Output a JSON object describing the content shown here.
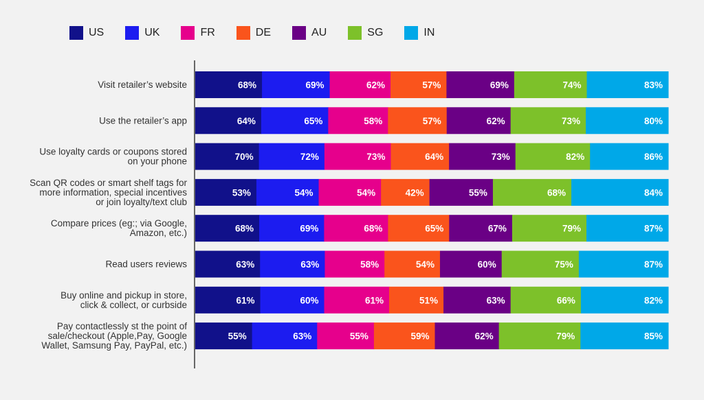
{
  "chart_data": {
    "type": "bar",
    "orientation": "horizontal",
    "stacked": true,
    "normalized": true,
    "title": "",
    "xlabel": "",
    "ylabel": "",
    "legend_position": "top-left",
    "grid": false,
    "categories": [
      "Visit retailer’s website",
      "Use the retailer’s app",
      "Use loyalty cards or coupons stored\non your phone",
      "Scan QR codes or smart shelf tags for\nmore information, special incentives\nor join loyalty/text club",
      "Compare prices (eg:; via Google,\nAmazon, etc.)",
      "Read users reviews",
      "Buy online and pickup in store,\nclick & collect, or curbside",
      "Pay contactlessly st the point of\nsale/checkout (Apple,Pay, Google\nWallet, Samsung Pay, PayPal, etc.)"
    ],
    "series": [
      {
        "name": "US",
        "color": "#11118a",
        "values": [
          68,
          64,
          70,
          53,
          68,
          63,
          61,
          55
        ]
      },
      {
        "name": "UK",
        "color": "#1c1cf0",
        "values": [
          69,
          65,
          72,
          54,
          69,
          63,
          60,
          63
        ]
      },
      {
        "name": "FR",
        "color": "#e6008c",
        "values": [
          62,
          58,
          73,
          54,
          68,
          58,
          61,
          55
        ]
      },
      {
        "name": "DE",
        "color": "#fa541c",
        "values": [
          57,
          57,
          64,
          42,
          65,
          54,
          51,
          59
        ]
      },
      {
        "name": "AU",
        "color": "#6a0085",
        "values": [
          69,
          62,
          73,
          55,
          67,
          60,
          63,
          62
        ]
      },
      {
        "name": "SG",
        "color": "#7dc12a",
        "values": [
          74,
          73,
          82,
          68,
          79,
          75,
          66,
          79
        ]
      },
      {
        "name": "IN",
        "color": "#00a8e8",
        "values": [
          83,
          80,
          86,
          84,
          87,
          87,
          82,
          85
        ]
      }
    ],
    "value_suffix": "%"
  }
}
